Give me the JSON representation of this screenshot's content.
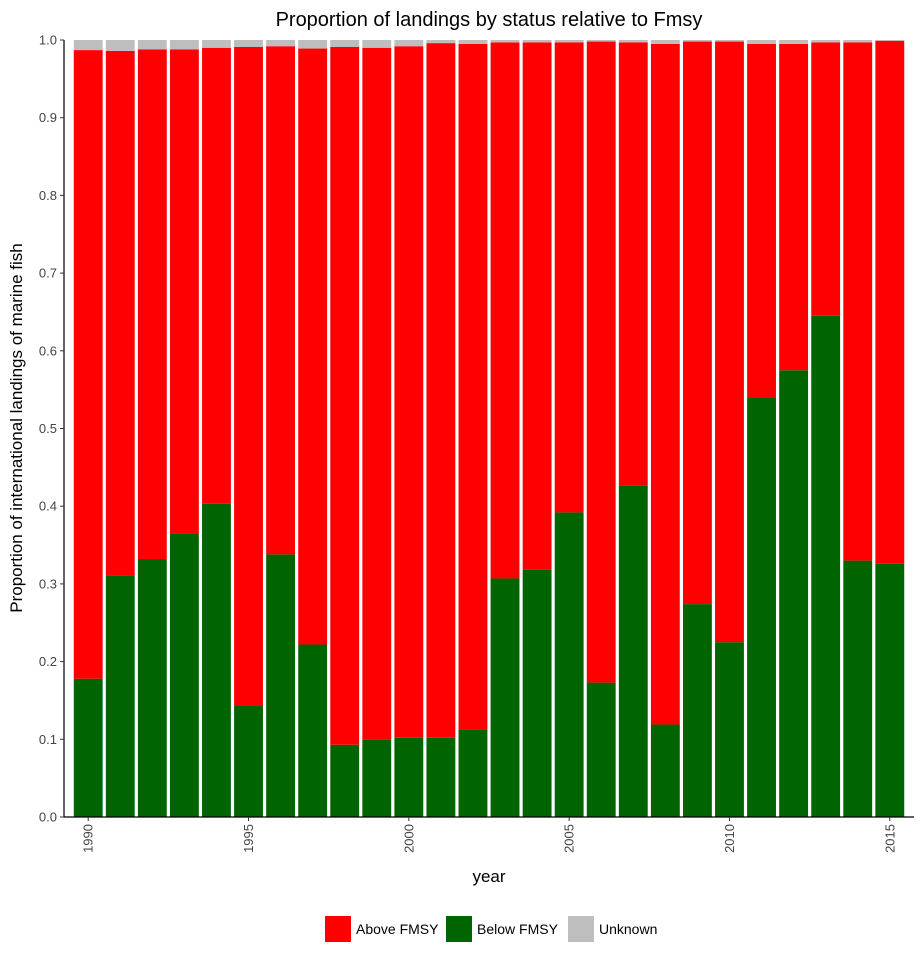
{
  "chart_data": {
    "type": "bar",
    "stacked": true,
    "title": "Proportion of landings by status relative to Fmsy",
    "xlabel": "year",
    "ylabel": "Proportion of international landings of marine fish",
    "ylim": [
      0,
      1
    ],
    "yticks": [
      "0.0",
      "0.1",
      "0.2",
      "0.3",
      "0.4",
      "0.5",
      "0.6",
      "0.7",
      "0.8",
      "0.9",
      "1.0"
    ],
    "xticks": [
      "1990",
      "1995",
      "2000",
      "2005",
      "2010",
      "2015"
    ],
    "grid": false,
    "legend_position": "bottom",
    "categories": [
      1990,
      1991,
      1992,
      1993,
      1994,
      1995,
      1996,
      1997,
      1998,
      1999,
      2000,
      2001,
      2002,
      2003,
      2004,
      2005,
      2006,
      2007,
      2008,
      2009,
      2010,
      2011,
      2012,
      2013,
      2014,
      2015
    ],
    "series": [
      {
        "name": "Below FMSY",
        "color": "#006400",
        "values": [
          0.178,
          0.311,
          0.332,
          0.365,
          0.403,
          0.144,
          0.338,
          0.222,
          0.093,
          0.1,
          0.102,
          0.102,
          0.112,
          0.307,
          0.318,
          0.392,
          0.173,
          0.427,
          0.119,
          0.274,
          0.225,
          0.54,
          0.575,
          0.645,
          0.33,
          0.326
        ]
      },
      {
        "name": "Above FMSY",
        "color": "#ff0000",
        "values": [
          0.809,
          0.675,
          0.656,
          0.623,
          0.587,
          0.847,
          0.654,
          0.767,
          0.898,
          0.89,
          0.89,
          0.894,
          0.883,
          0.69,
          0.679,
          0.605,
          0.825,
          0.57,
          0.876,
          0.724,
          0.773,
          0.455,
          0.42,
          0.352,
          0.667,
          0.673
        ]
      },
      {
        "name": "Unknown",
        "color": "#bebebe",
        "values": [
          0.013,
          0.014,
          0.012,
          0.012,
          0.01,
          0.009,
          0.008,
          0.011,
          0.009,
          0.01,
          0.008,
          0.004,
          0.005,
          0.003,
          0.003,
          0.003,
          0.002,
          0.003,
          0.005,
          0.002,
          0.002,
          0.005,
          0.005,
          0.003,
          0.003,
          0.001
        ]
      }
    ],
    "legend_order": [
      "Above FMSY",
      "Below FMSY",
      "Unknown"
    ]
  }
}
